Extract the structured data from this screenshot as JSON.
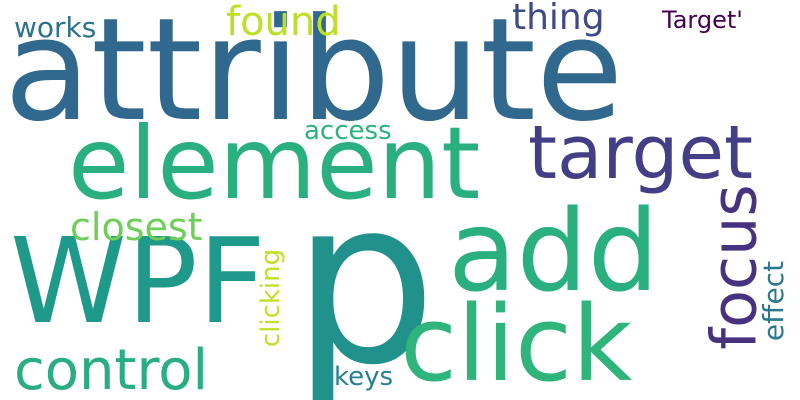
{
  "words": {
    "p": {
      "text": "p",
      "color": "#21918c"
    },
    "attribute": {
      "text": "attribute",
      "color": "#31688e"
    },
    "wpf": {
      "text": "WPF",
      "color": "#1f9a8a"
    },
    "add": {
      "text": "add",
      "color": "#2ab07f"
    },
    "click": {
      "text": "click",
      "color": "#2fb47c"
    },
    "element": {
      "text": "element",
      "color": "#2ab07f"
    },
    "target": {
      "text": "target",
      "color": "#433e85"
    },
    "focus": {
      "text": "focus",
      "color": "#46327e"
    },
    "control": {
      "text": "control",
      "color": "#29af7f"
    },
    "found": {
      "text": "found",
      "color": "#bddf26"
    },
    "closest": {
      "text": "closest",
      "color": "#6ece58"
    },
    "thing": {
      "text": "thing",
      "color": "#3e4a89"
    },
    "works": {
      "text": "works",
      "color": "#2c728e"
    },
    "access": {
      "text": "access",
      "color": "#2db27d"
    },
    "keys": {
      "text": "keys",
      "color": "#27808e"
    },
    "clicking": {
      "text": "clicking",
      "color": "#c2df23"
    },
    "effect": {
      "text": "effect",
      "color": "#2a788e"
    },
    "target_quoted": {
      "text": "Target'",
      "color": "#440154"
    }
  }
}
